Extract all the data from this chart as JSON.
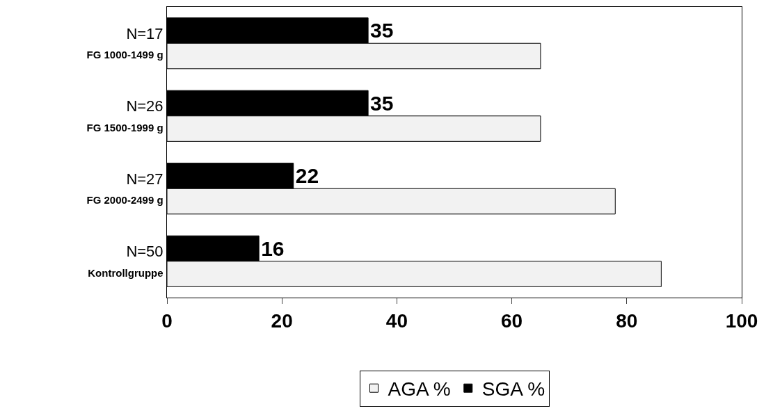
{
  "chart_data": {
    "type": "bar",
    "orientation": "horizontal",
    "categories": [
      "N=17\nFG 1000-1499 g",
      "N=26\nFG 1500-1999 g",
      "N=27\nFG 2000-2499 g",
      "N=50\nKontrollgruppe"
    ],
    "series": [
      {
        "name": "AGA %",
        "color": "#f2f2f2",
        "values": [
          65,
          65,
          78,
          86
        ]
      },
      {
        "name": "SGA %",
        "color": "#000000",
        "values": [
          35,
          35,
          22,
          16
        ],
        "value_labels": [
          "35",
          "35",
          "22",
          "16"
        ]
      }
    ],
    "xlim": [
      0,
      100
    ],
    "xticks": [
      0,
      20,
      40,
      60,
      80,
      100
    ],
    "legend": "bottom"
  }
}
